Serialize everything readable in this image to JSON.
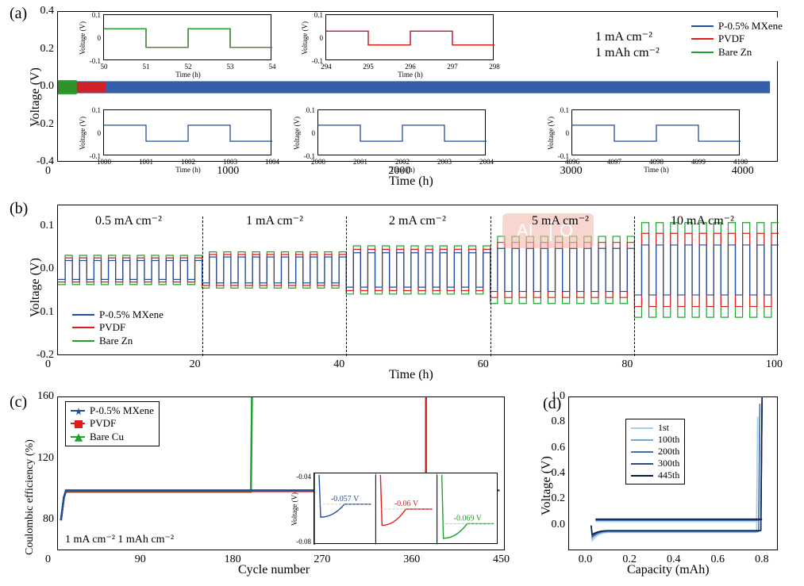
{
  "colors": {
    "mxene": "#1f4fa0",
    "pvdf": "#e11a1a",
    "barezn": "#1ea02a",
    "barecu": "#1ea02a",
    "cap1": "#a5cfe9",
    "cap2": "#6fa8d6",
    "cap3": "#3f71ae",
    "cap4": "#244c85",
    "cap5": "#0c1a40",
    "grid": "#cccccc",
    "border": "#000000",
    "bg": "#ffffff"
  },
  "panel_a": {
    "label": "(a)",
    "xlabel": "Time (h)",
    "ylabel": "Voltage (V)",
    "xlim": [
      0,
      4200
    ],
    "ylim": [
      -0.4,
      0.4
    ],
    "xticks": [
      0,
      1000,
      2000,
      3000,
      4000
    ],
    "yticks": [
      -0.4,
      -0.2,
      0,
      0.2,
      0.4
    ],
    "legend": [
      {
        "label": "P-0.5% MXene",
        "color": "mxene"
      },
      {
        "label": "PVDF",
        "color": "pvdf"
      },
      {
        "label": "Bare Zn",
        "color": "barezn"
      }
    ],
    "series": {
      "mxene": {
        "start": 0,
        "end": 4150,
        "amplitude": 0.032,
        "period": 2
      },
      "pvdf": {
        "start": 0,
        "end": 280,
        "amplitude": 0.028,
        "period": 2
      },
      "barezn": {
        "start": 0,
        "end": 110,
        "amplitude": 0.038,
        "period": 2
      }
    },
    "conditions": [
      "1 mA cm⁻²",
      "1 mAh cm⁻²"
    ],
    "insets": [
      {
        "x": [
          50,
          54
        ],
        "y": [
          -0.1,
          0.1
        ],
        "series": [
          "mxene",
          "pvdf",
          "barezn"
        ],
        "amp": 0.04,
        "period": 2,
        "xticks": [
          50,
          51,
          52,
          53,
          54
        ]
      },
      {
        "x": [
          294,
          298
        ],
        "y": [
          -0.1,
          0.1
        ],
        "series": [
          "mxene",
          "pvdf"
        ],
        "amp": 0.03,
        "period": 2,
        "xticks": [
          294,
          295,
          296,
          297,
          298
        ]
      },
      {
        "x": [
          1000,
          1004
        ],
        "y": [
          -0.1,
          0.1
        ],
        "series": [
          "mxene"
        ],
        "amp": 0.035,
        "period": 2,
        "xticks": [
          1000,
          1001,
          1002,
          1003,
          1004
        ]
      },
      {
        "x": [
          2000,
          2004
        ],
        "y": [
          -0.1,
          0.1
        ],
        "series": [
          "mxene"
        ],
        "amp": 0.035,
        "period": 2,
        "xticks": [
          2000,
          2001,
          2002,
          2003,
          2004
        ]
      },
      {
        "x": [
          4096,
          4100
        ],
        "y": [
          -0.1,
          0.1
        ],
        "series": [
          "mxene"
        ],
        "amp": 0.035,
        "period": 2,
        "xticks": [
          4096,
          4097,
          4098,
          4099,
          4100
        ]
      }
    ]
  },
  "panel_b": {
    "label": "(b)",
    "xlabel": "Time (h)",
    "ylabel": "Voltage (V)",
    "xlim": [
      0,
      100
    ],
    "ylim": [
      -0.2,
      0.15
    ],
    "xticks": [
      0,
      20,
      40,
      60,
      80,
      100
    ],
    "yticks": [
      -0.2,
      -0.1,
      0,
      0.1
    ],
    "legend": [
      {
        "label": "P-0.5% MXene",
        "color": "mxene"
      },
      {
        "label": "PVDF",
        "color": "pvdf"
      },
      {
        "label": "Bare Zn",
        "color": "barezn"
      }
    ],
    "segments": [
      {
        "range": [
          0,
          20
        ],
        "label": "0.5 mA cm⁻²",
        "amp_m": 0.022,
        "amp_p": 0.028,
        "amp_g": 0.034
      },
      {
        "range": [
          20,
          40
        ],
        "label": "1 mA cm⁻²",
        "amp_m": 0.03,
        "amp_p": 0.036,
        "amp_g": 0.042
      },
      {
        "range": [
          40,
          60
        ],
        "label": "2 mA cm⁻²",
        "amp_m": 0.04,
        "amp_p": 0.048,
        "amp_g": 0.056
      },
      {
        "range": [
          60,
          80
        ],
        "label": "5 mA cm⁻²",
        "amp_m": 0.05,
        "amp_p": 0.064,
        "amp_g": 0.078
      },
      {
        "range": [
          80,
          100
        ],
        "label": "10 mA cm⁻²",
        "amp_m": 0.058,
        "amp_p": 0.085,
        "amp_g": 0.11
      }
    ],
    "period": 2
  },
  "panel_c": {
    "label": "(c)",
    "xlabel": "Cycle number",
    "ylabel": "Coulombic efficiency (%)",
    "xlim": [
      0,
      450
    ],
    "ylim": [
      60,
      160
    ],
    "xticks": [
      0,
      90,
      180,
      270,
      360,
      450
    ],
    "yticks": [
      80,
      120,
      160
    ],
    "legend": [
      {
        "label": "P-0.5% MXene",
        "color": "mxene",
        "marker": "star"
      },
      {
        "label": "PVDF",
        "color": "pvdf",
        "marker": "square"
      },
      {
        "label": "Bare Cu",
        "color": "barecu",
        "marker": "tri"
      }
    ],
    "conditions": "1 mA cm⁻²  1 mAh cm⁻²",
    "series": {
      "mxene": {
        "end": 445,
        "ce": 99.5,
        "spike_at": null
      },
      "pvdf": {
        "end": 370,
        "ce": 99.0,
        "spike_at": 370,
        "spike_ce": 160
      },
      "barecu": {
        "end": 195,
        "ce": 98.5,
        "spike_at": 195,
        "spike_ce": 160
      }
    },
    "nucleation_inset": {
      "ylim": [
        -0.08,
        -0.04
      ],
      "yticks": [
        -0.04,
        -0.08
      ],
      "curves": [
        {
          "color": "mxene",
          "label": "-0.057 V",
          "min": -0.065,
          "settle": -0.057
        },
        {
          "color": "pvdf",
          "label": "-0.06 V",
          "min": -0.07,
          "settle": -0.06
        },
        {
          "color": "barecu",
          "label": "-0.069 V",
          "min": -0.078,
          "settle": -0.069
        }
      ]
    }
  },
  "panel_d": {
    "label": "(d)",
    "xlabel": "Capacity (mAh)",
    "ylabel": "Voltage (V)",
    "xlim": [
      -0.1,
      0.85
    ],
    "ylim": [
      -0.2,
      1.0
    ],
    "xticks": [
      0,
      0.2,
      0.4,
      0.6,
      0.8
    ],
    "yticks": [
      0.0,
      0.2,
      0.4,
      0.6,
      0.8,
      1.0
    ],
    "legend": [
      {
        "label": "1st",
        "color": "cap1"
      },
      {
        "label": "100th",
        "color": "cap2"
      },
      {
        "label": "200th",
        "color": "cap3"
      },
      {
        "label": "300th",
        "color": "cap4"
      },
      {
        "label": "445th",
        "color": "cap5"
      }
    ],
    "curves": [
      {
        "color": "cap1",
        "plating_v": -0.055,
        "stripping_v": 0.03,
        "cap": 0.75,
        "dip": -0.12,
        "rise": 0.85
      },
      {
        "color": "cap2",
        "plating_v": -0.05,
        "stripping_v": 0.04,
        "cap": 0.76,
        "dip": -0.1,
        "rise": 0.9
      },
      {
        "color": "cap3",
        "plating_v": -0.045,
        "stripping_v": 0.04,
        "cap": 0.76,
        "dip": -0.09,
        "rise": 0.95
      },
      {
        "color": "cap4",
        "plating_v": -0.042,
        "stripping_v": 0.045,
        "cap": 0.77,
        "dip": -0.08,
        "rise": 0.98
      },
      {
        "color": "cap5",
        "plating_v": -0.04,
        "stripping_v": 0.05,
        "cap": 0.77,
        "dip": -0.07,
        "rise": 1.0
      }
    ]
  }
}
